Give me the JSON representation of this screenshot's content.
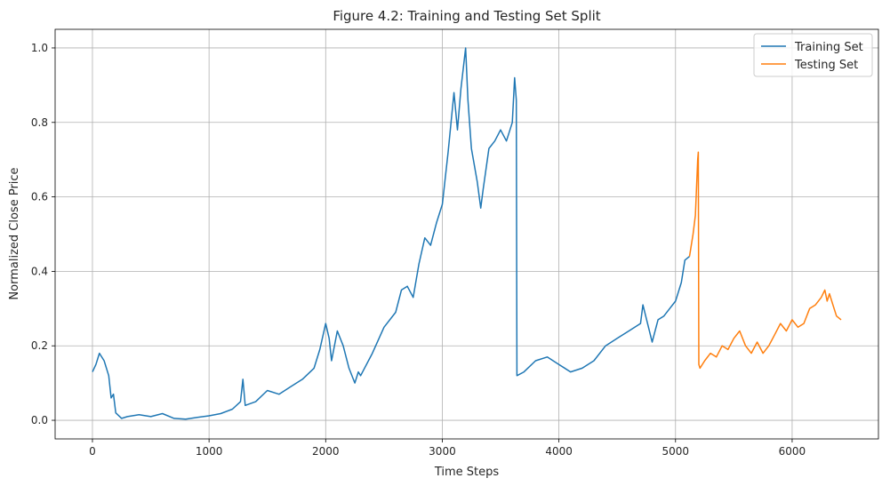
{
  "chart_data": {
    "type": "line",
    "title": "Figure 4.2: Training and Testing Set Split",
    "xlabel": "Time Steps",
    "ylabel": "Normalized Close Price",
    "xlim": [
      -320,
      6740
    ],
    "ylim": [
      -0.05,
      1.05
    ],
    "x_ticks": [
      0,
      1000,
      2000,
      3000,
      4000,
      5000,
      6000
    ],
    "x_tick_labels": [
      "0",
      "1000",
      "2000",
      "3000",
      "4000",
      "5000",
      "6000"
    ],
    "y_ticks": [
      0.0,
      0.2,
      0.4,
      0.6,
      0.8,
      1.0
    ],
    "y_tick_labels": [
      "0.0",
      "0.2",
      "0.4",
      "0.6",
      "0.8",
      "1.0"
    ],
    "grid": true,
    "legend_position": "top-right",
    "series": [
      {
        "name": "Training Set",
        "color": "#1f77b4",
        "x": [
          0,
          30,
          60,
          100,
          140,
          160,
          180,
          200,
          250,
          300,
          400,
          500,
          600,
          700,
          800,
          900,
          1000,
          1100,
          1200,
          1270,
          1290,
          1310,
          1400,
          1500,
          1600,
          1700,
          1800,
          1900,
          1950,
          2000,
          2030,
          2050,
          2100,
          2150,
          2200,
          2250,
          2280,
          2300,
          2400,
          2500,
          2600,
          2650,
          2700,
          2750,
          2800,
          2850,
          2900,
          2950,
          3000,
          3050,
          3100,
          3130,
          3160,
          3200,
          3220,
          3250,
          3300,
          3330,
          3350,
          3400,
          3450,
          3500,
          3550,
          3600,
          3620,
          3635,
          3640,
          3700,
          3800,
          3900,
          4000,
          4100,
          4200,
          4300,
          4400,
          4500,
          4600,
          4700,
          4720,
          4800,
          4850,
          4900,
          4950,
          5000,
          5050,
          5080,
          5120
        ],
        "y": [
          0.13,
          0.15,
          0.18,
          0.16,
          0.12,
          0.06,
          0.07,
          0.02,
          0.005,
          0.01,
          0.015,
          0.01,
          0.018,
          0.005,
          0.003,
          0.008,
          0.012,
          0.018,
          0.03,
          0.05,
          0.11,
          0.04,
          0.05,
          0.08,
          0.07,
          0.09,
          0.11,
          0.14,
          0.19,
          0.26,
          0.22,
          0.16,
          0.24,
          0.2,
          0.14,
          0.1,
          0.13,
          0.12,
          0.18,
          0.25,
          0.29,
          0.35,
          0.36,
          0.33,
          0.42,
          0.49,
          0.47,
          0.53,
          0.58,
          0.72,
          0.88,
          0.78,
          0.89,
          1.0,
          0.86,
          0.73,
          0.64,
          0.57,
          0.62,
          0.73,
          0.75,
          0.78,
          0.75,
          0.8,
          0.92,
          0.86,
          0.12,
          0.13,
          0.16,
          0.17,
          0.15,
          0.13,
          0.14,
          0.16,
          0.2,
          0.22,
          0.24,
          0.26,
          0.31,
          0.21,
          0.27,
          0.28,
          0.3,
          0.32,
          0.37,
          0.43,
          0.44
        ]
      },
      {
        "name": "Testing Set",
        "color": "#ff7f0e",
        "x": [
          5120,
          5150,
          5170,
          5190,
          5195,
          5200,
          5210,
          5250,
          5300,
          5350,
          5400,
          5450,
          5500,
          5550,
          5600,
          5650,
          5700,
          5750,
          5800,
          5850,
          5900,
          5950,
          6000,
          6050,
          6100,
          6150,
          6200,
          6250,
          6280,
          6300,
          6320,
          6350,
          6380,
          6420
        ],
        "y": [
          0.44,
          0.5,
          0.55,
          0.7,
          0.72,
          0.15,
          0.14,
          0.16,
          0.18,
          0.17,
          0.2,
          0.19,
          0.22,
          0.24,
          0.2,
          0.18,
          0.21,
          0.18,
          0.2,
          0.23,
          0.26,
          0.24,
          0.27,
          0.25,
          0.26,
          0.3,
          0.31,
          0.33,
          0.35,
          0.32,
          0.34,
          0.31,
          0.28,
          0.27
        ]
      }
    ]
  }
}
